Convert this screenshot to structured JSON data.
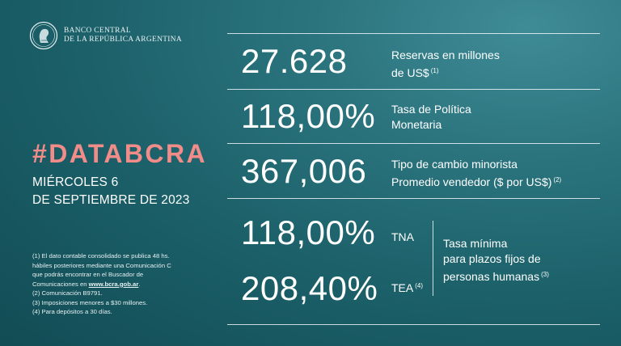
{
  "logo": {
    "line1": "BANCO CENTRAL",
    "line2": "DE LA REPÚBLICA ARGENTINA",
    "icon": "seal-icon"
  },
  "headline": {
    "hashtag": "#DATABCRA",
    "date_line1": "MIÉRCOLES 6",
    "date_line2": "DE SEPTIEMBRE DE 2023"
  },
  "indicators": [
    {
      "value": "27.628",
      "label_line1": "Reservas en millones",
      "label_line2": "de US$",
      "note": "(1)"
    },
    {
      "value": "118,00%",
      "label_line1": "Tasa de Política",
      "label_line2": "Monetaria",
      "note": ""
    },
    {
      "value": "367,006",
      "label_line1": "Tipo de cambio minorista",
      "label_line2": "Promedio vendedor ($ por US$)",
      "note": "(2)"
    }
  ],
  "fixed_term": {
    "tna_value": "118,00%",
    "tna_label": "TNA",
    "tea_value": "208,40%",
    "tea_label": "TEA",
    "tea_note": "(4)",
    "label_line1": "Tasa mínima",
    "label_line2": "para plazos fijos de",
    "label_line3": "personas humanas",
    "label_note": "(3)"
  },
  "footnotes": {
    "line1": "(1) El dato contable consolidado se publica 48 hs.",
    "line2": "hábiles posteriores mediante una Comunicación C",
    "line3": "que podrás encontrar en el Buscador de",
    "line4_prefix": "Comunicaciones en ",
    "line4_link": "www.bcra.gob.ar",
    "line4_suffix": ".",
    "line5": "(2) Comunicación B9791.",
    "line6": "(3) Imposiciones menores a $30 millones.",
    "line7": "(4) Para depósitos a 30 días."
  },
  "colors": {
    "background": "#1b5f68",
    "accent": "#f18c89"
  }
}
